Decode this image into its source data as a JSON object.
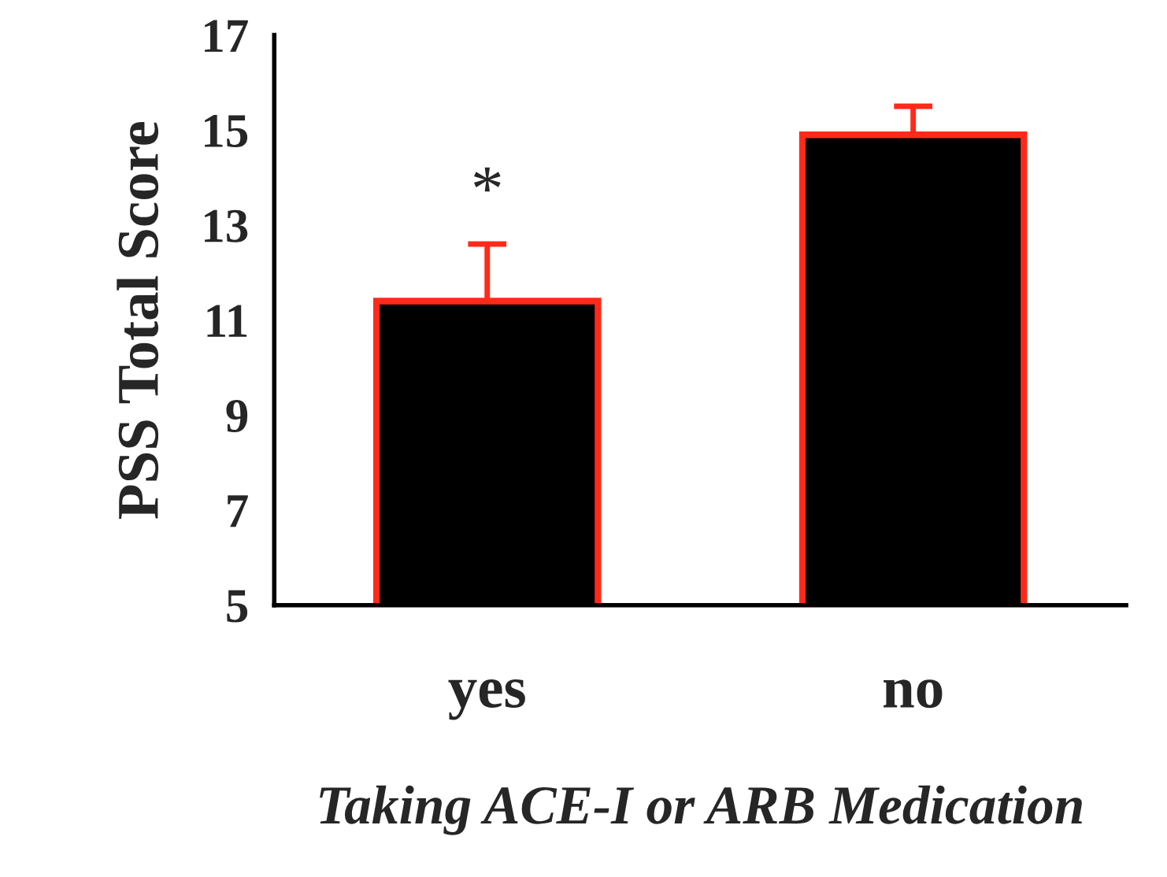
{
  "chart_data": {
    "type": "bar",
    "categories": [
      "yes",
      "no"
    ],
    "series": [
      {
        "color": "#000000",
        "values": [
          11.4,
          14.9
        ],
        "errors": [
          [
            11.4,
            12.6
          ],
          [
            14.9,
            15.5
          ]
        ]
      }
    ],
    "ylim": [
      5,
      17
    ],
    "yticks": [
      5,
      7,
      9,
      11,
      13,
      15,
      17
    ],
    "ylabel": "PSS Total Score",
    "xlabel": "Taking ACE-I or ARB Medication",
    "annotations": [
      "*"
    ],
    "grid": false,
    "legend": false
  }
}
